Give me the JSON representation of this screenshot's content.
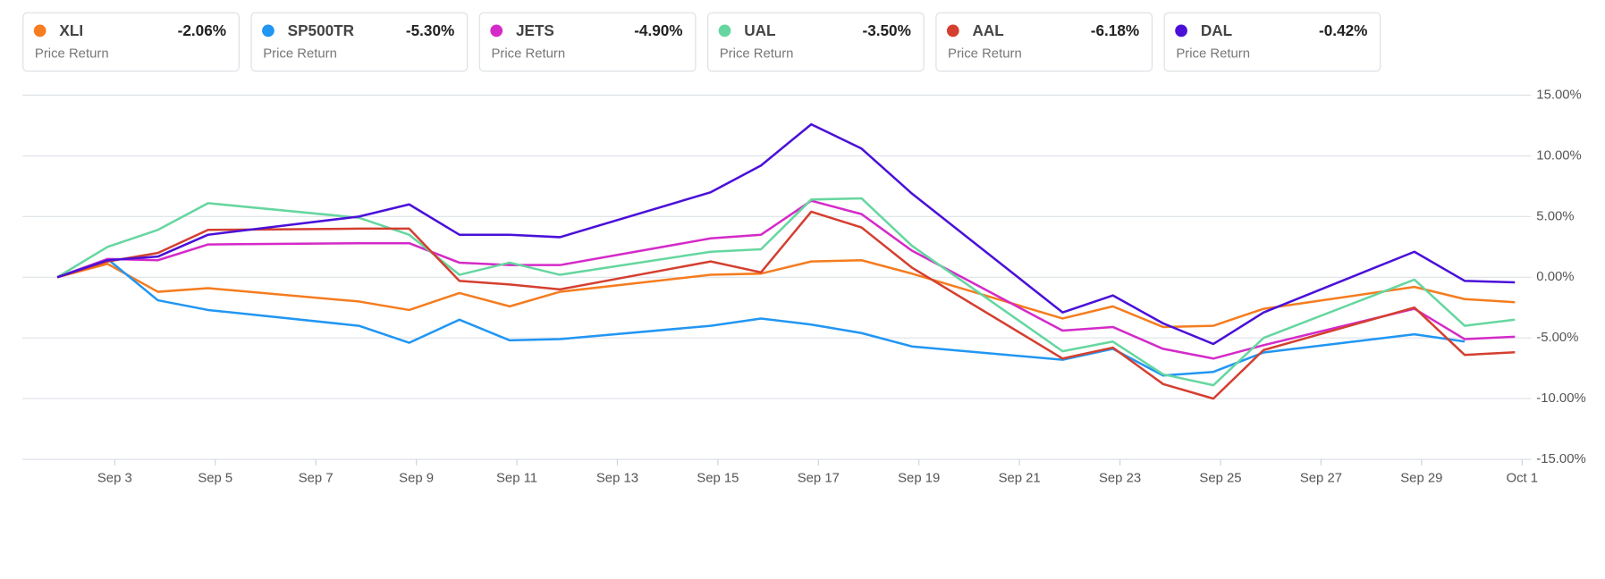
{
  "chart_data": {
    "type": "line",
    "x": [
      "Sep 2",
      "Sep 3",
      "Sep 4",
      "Sep 5",
      "Sep 8",
      "Sep 9",
      "Sep 10",
      "Sep 11",
      "Sep 12",
      "Sep 15",
      "Sep 16",
      "Sep 17",
      "Sep 18",
      "Sep 19",
      "Sep 22",
      "Sep 23",
      "Sep 24",
      "Sep 25",
      "Sep 26",
      "Sep 29",
      "Sep 30",
      "Oct 1"
    ],
    "xlim": [
      "Sep 2",
      "Oct 1"
    ],
    "xticks": [
      "Sep 3",
      "Sep 5",
      "Sep 7",
      "Sep 9",
      "Sep 11",
      "Sep 13",
      "Sep 15",
      "Sep 17",
      "Sep 19",
      "Sep 21",
      "Sep 23",
      "Sep 25",
      "Sep 27",
      "Sep 29",
      "Oct 1"
    ],
    "ylim": [
      -15,
      15
    ],
    "yticks": [
      {
        "value": 15,
        "label": "15.00%"
      },
      {
        "value": 10,
        "label": "10.00%"
      },
      {
        "value": 5,
        "label": "5.00%"
      },
      {
        "value": 0,
        "label": "0.00%"
      },
      {
        "value": -5,
        "label": "-5.00%"
      },
      {
        "value": -10,
        "label": "-10.00%"
      },
      {
        "value": -15,
        "label": "-15.00%"
      }
    ],
    "grid": true,
    "legend_sublabel": "Price Return",
    "series": [
      {
        "name": "XLI",
        "color": "#f57c1f",
        "change": -2.06,
        "change_label": "-2.06%",
        "values": [
          0,
          1.1,
          -1.2,
          -0.9,
          -2.0,
          -2.7,
          -1.3,
          -2.4,
          -1.2,
          0.2,
          0.3,
          1.3,
          1.4,
          0.3,
          -3.4,
          -2.4,
          -4.1,
          -4.0,
          -2.6,
          -0.8,
          -1.8,
          -2.06
        ]
      },
      {
        "name": "SP500TR",
        "color": "#2196f3",
        "change": -5.3,
        "change_label": "-5.30%",
        "values": [
          0,
          1.5,
          -1.9,
          -2.7,
          -4.0,
          -5.4,
          -3.5,
          -5.2,
          -5.1,
          -4.0,
          -3.4,
          -3.9,
          -4.6,
          -5.7,
          -6.8,
          -5.9,
          -8.1,
          -7.8,
          -6.2,
          -4.7,
          -5.3,
          null
        ]
      },
      {
        "name": "JETS",
        "color": "#d42ac8",
        "change": -4.9,
        "change_label": "-4.90%",
        "values": [
          0,
          1.5,
          1.4,
          2.7,
          2.8,
          2.8,
          1.2,
          1.0,
          1.0,
          3.2,
          3.5,
          6.3,
          5.2,
          2.2,
          -4.4,
          -4.1,
          -5.9,
          -6.7,
          -5.6,
          -2.6,
          -5.1,
          -4.9
        ]
      },
      {
        "name": "UAL",
        "color": "#66d6a0",
        "change": -3.5,
        "change_label": "-3.50%",
        "values": [
          0,
          2.5,
          3.9,
          6.1,
          4.9,
          3.5,
          0.2,
          1.2,
          0.2,
          2.1,
          2.3,
          6.4,
          6.5,
          2.6,
          -6.1,
          -5.3,
          -8.0,
          -8.9,
          -5.0,
          -0.2,
          -4.0,
          -3.5
        ]
      },
      {
        "name": "AAL",
        "color": "#d43f30",
        "change": -6.18,
        "change_label": "-6.18%",
        "values": [
          0,
          1.3,
          2.0,
          3.9,
          4.0,
          4.0,
          -0.3,
          -0.6,
          -1.0,
          1.3,
          0.4,
          5.4,
          4.1,
          0.8,
          -6.7,
          -5.8,
          -8.8,
          -10.0,
          -6.0,
          -2.5,
          -6.4,
          -6.18
        ]
      },
      {
        "name": "DAL",
        "color": "#4a10d8",
        "change": -0.42,
        "change_label": "-0.42%",
        "values": [
          0,
          1.4,
          1.7,
          3.5,
          5.0,
          6.0,
          3.5,
          3.5,
          3.3,
          7.0,
          9.2,
          12.6,
          10.6,
          6.9,
          -2.9,
          -1.5,
          -3.8,
          -5.5,
          -2.9,
          2.1,
          -0.3,
          -0.42
        ]
      }
    ]
  }
}
